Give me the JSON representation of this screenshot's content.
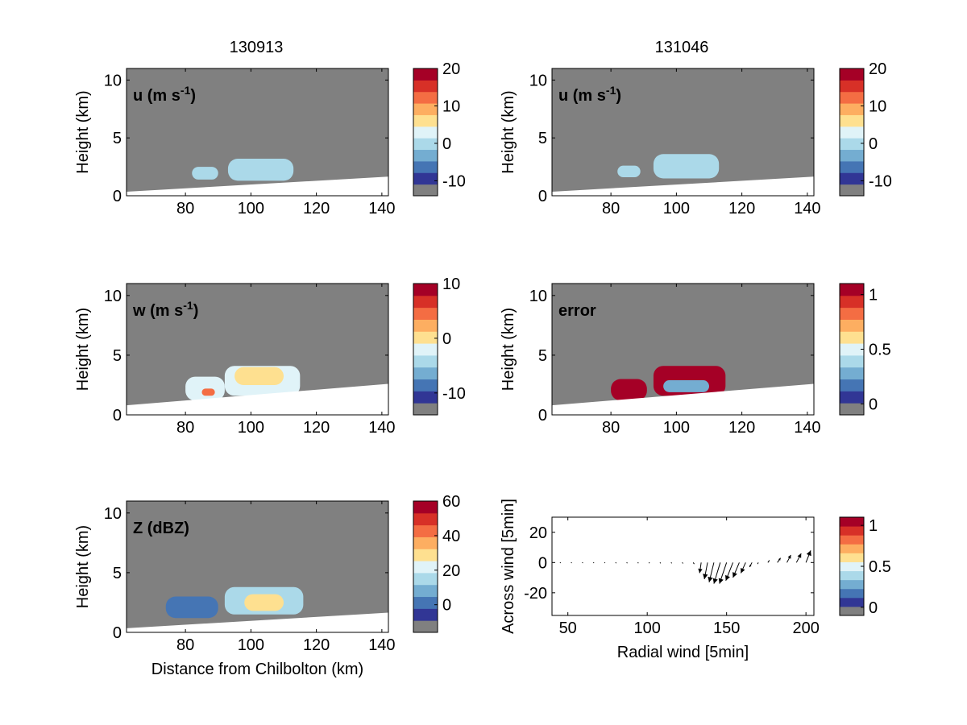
{
  "figure": {
    "col_titles": [
      "130913",
      "131046"
    ]
  },
  "colors": {
    "background": "#808080",
    "ground": "#ffffff",
    "palette": [
      "#808080",
      "#313695",
      "#4575b4",
      "#74add1",
      "#abd9e9",
      "#e0f3f8",
      "#fee090",
      "#fdae61",
      "#f46d43",
      "#d73027",
      "#a50026"
    ]
  },
  "chart_data": [
    {
      "type": "heatmap",
      "panel": "u-130913",
      "label": "u (m s",
      "label_sup": "-1",
      "label_tail": ")",
      "ylabel": "Height (km)",
      "xlabel": "",
      "xlim": [
        62,
        142
      ],
      "ylim": [
        0,
        11
      ],
      "xticks": [
        80,
        100,
        120,
        140
      ],
      "yticks": [
        0,
        5,
        10
      ],
      "ground_line": [
        [
          62,
          0.35
        ],
        [
          142,
          1.65
        ]
      ],
      "cloud_blobs": [
        {
          "x": [
            82,
            90
          ],
          "y": [
            1.4,
            2.5
          ],
          "color": "#abd9e9"
        },
        {
          "x": [
            93,
            113
          ],
          "y": [
            1.3,
            3.2
          ],
          "color": "#abd9e9"
        }
      ],
      "colorbar": {
        "ticks": [
          "20",
          "10",
          "0",
          "-10"
        ],
        "tick_values": [
          20,
          10,
          0,
          -10
        ],
        "range": [
          -14,
          20
        ]
      }
    },
    {
      "type": "heatmap",
      "panel": "u-131046",
      "label": "u (m s",
      "label_sup": "-1",
      "label_tail": ")",
      "ylabel": "Height (km)",
      "xlabel": "",
      "xlim": [
        62,
        142
      ],
      "ylim": [
        0,
        11
      ],
      "xticks": [
        80,
        100,
        120,
        140
      ],
      "yticks": [
        0,
        5,
        10
      ],
      "ground_line": [
        [
          62,
          0.35
        ],
        [
          142,
          1.65
        ]
      ],
      "cloud_blobs": [
        {
          "x": [
            82,
            89
          ],
          "y": [
            1.6,
            2.6
          ],
          "color": "#abd9e9"
        },
        {
          "x": [
            93,
            113
          ],
          "y": [
            1.5,
            3.6
          ],
          "color": "#abd9e9"
        }
      ],
      "colorbar": {
        "ticks": [
          "20",
          "10",
          "0",
          "-10"
        ],
        "tick_values": [
          20,
          10,
          0,
          -10
        ],
        "range": [
          -14,
          20
        ]
      }
    },
    {
      "type": "heatmap",
      "panel": "w-130913",
      "label": "w (m s",
      "label_sup": "-1",
      "label_tail": ")",
      "ylabel": "Height (km)",
      "xlabel": "",
      "xlim": [
        62,
        142
      ],
      "ylim": [
        0,
        11
      ],
      "xticks": [
        80,
        100,
        120,
        140
      ],
      "yticks": [
        0,
        5,
        10
      ],
      "ground_line": [
        [
          62,
          0.8
        ],
        [
          142,
          2.6
        ]
      ],
      "cloud_blobs": [
        {
          "x": [
            80,
            92
          ],
          "y": [
            1.2,
            3.2
          ],
          "color": "#e0f3f8"
        },
        {
          "x": [
            92,
            115
          ],
          "y": [
            1.6,
            4.1
          ],
          "color": "#e0f3f8"
        },
        {
          "x": [
            95,
            110
          ],
          "y": [
            2.5,
            4.0
          ],
          "color": "#fee090"
        },
        {
          "x": [
            85,
            89
          ],
          "y": [
            1.6,
            2.2
          ],
          "color": "#f46d43"
        }
      ],
      "colorbar": {
        "ticks": [
          "10",
          "0",
          "-10"
        ],
        "tick_values": [
          10,
          0,
          -10
        ],
        "range": [
          -14,
          10
        ]
      }
    },
    {
      "type": "heatmap",
      "panel": "error-131046",
      "label": "error",
      "label_sup": "",
      "label_tail": "",
      "ylabel": "Height (km)",
      "xlabel": "",
      "xlim": [
        62,
        142
      ],
      "ylim": [
        0,
        11
      ],
      "xticks": [
        80,
        100,
        120,
        140
      ],
      "yticks": [
        0,
        5,
        10
      ],
      "ground_line": [
        [
          62,
          0.8
        ],
        [
          142,
          2.6
        ]
      ],
      "cloud_blobs": [
        {
          "x": [
            80,
            91
          ],
          "y": [
            1.2,
            3.0
          ],
          "color": "#a50026"
        },
        {
          "x": [
            93,
            115
          ],
          "y": [
            1.6,
            4.1
          ],
          "color": "#a50026"
        },
        {
          "x": [
            96,
            110
          ],
          "y": [
            1.9,
            2.9
          ],
          "color": "#74add1"
        }
      ],
      "colorbar": {
        "ticks": [
          "1",
          "0.5",
          "0"
        ],
        "tick_values": [
          1,
          0.5,
          0
        ],
        "range": [
          -0.1,
          1.1
        ]
      }
    },
    {
      "type": "heatmap",
      "panel": "Z-130913",
      "label": "Z (dBZ)",
      "label_sup": "",
      "label_tail": "",
      "ylabel": "Height (km)",
      "xlabel": "Distance from Chilbolton (km)",
      "xlim": [
        62,
        142
      ],
      "ylim": [
        0,
        11
      ],
      "xticks": [
        80,
        100,
        120,
        140
      ],
      "yticks": [
        0,
        5,
        10
      ],
      "ground_line": [
        [
          62,
          0.35
        ],
        [
          142,
          1.65
        ]
      ],
      "cloud_blobs": [
        {
          "x": [
            74,
            90
          ],
          "y": [
            1.2,
            3.0
          ],
          "color": "#4575b4"
        },
        {
          "x": [
            92,
            116
          ],
          "y": [
            1.5,
            3.8
          ],
          "color": "#abd9e9"
        },
        {
          "x": [
            98,
            110
          ],
          "y": [
            1.8,
            3.2
          ],
          "color": "#fee090"
        }
      ],
      "colorbar": {
        "ticks": [
          "60",
          "40",
          "20",
          "0"
        ],
        "tick_values": [
          60,
          40,
          20,
          0
        ],
        "range": [
          -16,
          60
        ]
      }
    },
    {
      "type": "quiver",
      "panel": "wind-vectors",
      "label": "",
      "ylabel": "Across wind [5min]",
      "xlabel": "Radial wind [5min]",
      "xlim": [
        40,
        205
      ],
      "ylim": [
        -35,
        30
      ],
      "xticks": [
        50,
        100,
        150,
        200
      ],
      "yticks": [
        20,
        0,
        -20
      ],
      "vectors": [
        {
          "x": 45,
          "y": 0,
          "u": 0.5,
          "v": -0.3
        },
        {
          "x": 52,
          "y": 0,
          "u": 0.5,
          "v": -0.3
        },
        {
          "x": 59,
          "y": 0,
          "u": 0.5,
          "v": -0.3
        },
        {
          "x": 66,
          "y": 0,
          "u": 0.5,
          "v": -0.3
        },
        {
          "x": 73,
          "y": 0,
          "u": 0.5,
          "v": -0.3
        },
        {
          "x": 80,
          "y": 0,
          "u": 0.5,
          "v": -0.4
        },
        {
          "x": 87,
          "y": 0,
          "u": 0.5,
          "v": -0.4
        },
        {
          "x": 94,
          "y": 0,
          "u": 0.5,
          "v": -0.4
        },
        {
          "x": 101,
          "y": 0,
          "u": 0.5,
          "v": -0.4
        },
        {
          "x": 108,
          "y": 0,
          "u": 0.5,
          "v": -0.5
        },
        {
          "x": 115,
          "y": 0,
          "u": 0.5,
          "v": -0.5
        },
        {
          "x": 122,
          "y": 0,
          "u": 0.6,
          "v": -0.6
        },
        {
          "x": 129,
          "y": 0,
          "u": 0.6,
          "v": -1.0
        },
        {
          "x": 134,
          "y": 0,
          "u": -1.0,
          "v": -7
        },
        {
          "x": 138,
          "y": 0,
          "u": -2.0,
          "v": -11
        },
        {
          "x": 142,
          "y": 0,
          "u": -3.0,
          "v": -13
        },
        {
          "x": 146,
          "y": 0,
          "u": -4.0,
          "v": -14
        },
        {
          "x": 150,
          "y": 0,
          "u": -4.5,
          "v": -14
        },
        {
          "x": 154,
          "y": 0,
          "u": -4.5,
          "v": -12
        },
        {
          "x": 158,
          "y": 0,
          "u": -4.0,
          "v": -10
        },
        {
          "x": 162,
          "y": 0,
          "u": -3.0,
          "v": -7
        },
        {
          "x": 166,
          "y": 0,
          "u": -1.5,
          "v": -3
        },
        {
          "x": 170,
          "y": 0,
          "u": -0.5,
          "v": -1
        },
        {
          "x": 176,
          "y": 0,
          "u": 1.0,
          "v": 1.5
        },
        {
          "x": 182,
          "y": 0,
          "u": 2.0,
          "v": 3
        },
        {
          "x": 188,
          "y": 0,
          "u": 2.5,
          "v": 5
        },
        {
          "x": 194,
          "y": 0,
          "u": 3.0,
          "v": 6
        },
        {
          "x": 200,
          "y": 0,
          "u": 3.0,
          "v": 8
        }
      ],
      "colorbar": {
        "ticks": [
          "1",
          "0.5",
          "0"
        ],
        "tick_values": [
          1,
          0.5,
          0
        ],
        "range": [
          -0.1,
          1.1
        ]
      }
    }
  ]
}
